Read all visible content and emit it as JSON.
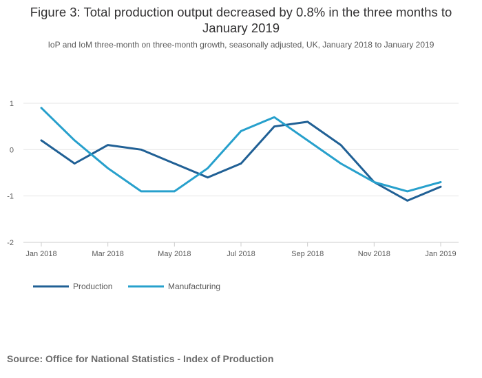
{
  "chart_data": {
    "type": "line",
    "title": "Figure 3: Total production output decreased by 0.8% in the three months to January 2019",
    "subtitle": "IoP and IoM three-month on three-month growth, seasonally adjusted, UK, January 2018 to January 2019",
    "xlabel": "",
    "ylabel": "",
    "ylim": [
      -2,
      1
    ],
    "yticks": [
      "1",
      "0",
      "-1",
      "-2"
    ],
    "categories": [
      "Jan 2018",
      "Feb 2018",
      "Mar 2018",
      "Apr 2018",
      "May 2018",
      "Jun 2018",
      "Jul 2018",
      "Aug 2018",
      "Sep 2018",
      "Oct 2018",
      "Nov 2018",
      "Dec 2018",
      "Jan 2019"
    ],
    "xtick_labels": [
      "Jan 2018",
      "Mar 2018",
      "May 2018",
      "Jul 2018",
      "Sep 2018",
      "Nov 2018",
      "Jan 2019"
    ],
    "series": [
      {
        "name": "Production",
        "color": "#206095",
        "values": [
          0.2,
          -0.3,
          0.1,
          0.0,
          -0.3,
          -0.6,
          -0.3,
          0.5,
          0.6,
          0.1,
          -0.7,
          -1.1,
          -0.8
        ]
      },
      {
        "name": "Manufacturing",
        "color": "#27a0cc",
        "values": [
          0.9,
          0.2,
          -0.4,
          -0.9,
          -0.9,
          -0.4,
          0.4,
          0.7,
          0.2,
          -0.3,
          -0.7,
          -0.9,
          -0.7
        ]
      }
    ],
    "legend": "bottom-left",
    "grid": true
  },
  "source": "Source: Office for National Statistics - Index of Production"
}
